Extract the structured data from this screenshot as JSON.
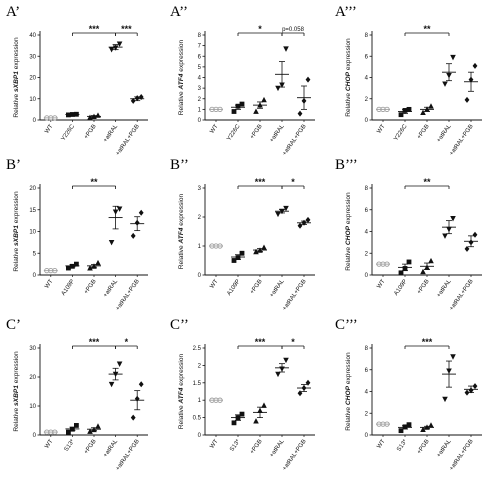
{
  "colors": {
    "wt": "#9e9e9e",
    "other": "#111111",
    "axis": "#111111"
  },
  "chart_data": [
    {
      "id": "A1",
      "panel_label": "A’",
      "type": "scatter",
      "gene": "sXBP1",
      "ylabel_pre": "Relative ",
      "ylabel_post": " expression",
      "ylim": [
        0,
        40
      ],
      "yticks": [
        0,
        10,
        20,
        30,
        40
      ],
      "categories": [
        "WT",
        "Y226C",
        "+PGB",
        "+atRAL",
        "+atRAL+PGB"
      ],
      "markers": [
        "circle",
        "square",
        "triangle-up",
        "triangle-down",
        "diamond"
      ],
      "points": [
        [
          1,
          1,
          1
        ],
        [
          2.4,
          2.6,
          2.7
        ],
        [
          1.2,
          1.6,
          2.2
        ],
        [
          33.2,
          34,
          35.8
        ],
        [
          9,
          10.3,
          10.8
        ]
      ],
      "means": [
        1,
        2.6,
        1.7,
        34.3,
        10
      ],
      "errors": [
        0,
        0.15,
        0.4,
        1.2,
        0.9
      ],
      "sig": [
        {
          "from": 1,
          "to": 3,
          "label": "***"
        },
        {
          "from": 3,
          "to": 4,
          "label": "***"
        }
      ]
    },
    {
      "id": "A2",
      "panel_label": "A’’",
      "type": "scatter",
      "gene": "ATF4",
      "ylabel_pre": "Relative ",
      "ylabel_post": " expression",
      "ylim": [
        0,
        8
      ],
      "yticks": [
        0,
        1,
        2,
        3,
        4,
        5,
        6,
        7,
        8
      ],
      "categories": [
        "WT",
        "Y226C",
        "+PGB",
        "+atRAL",
        "+atRAL+PGB"
      ],
      "markers": [
        "circle",
        "square",
        "triangle-up",
        "triangle-down",
        "diamond"
      ],
      "points": [
        [
          1,
          1,
          1
        ],
        [
          0.8,
          1.3,
          1.5
        ],
        [
          0.8,
          1.4,
          1.9
        ],
        [
          3,
          3.3,
          6.7
        ],
        [
          0.6,
          1.8,
          3.8
        ]
      ],
      "means": [
        1,
        1.2,
        1.4,
        4.3,
        2.1
      ],
      "errors": [
        0,
        0.2,
        0.3,
        1.2,
        1.1
      ],
      "sig": [
        {
          "from": 1,
          "to": 3,
          "label": "*"
        },
        {
          "from": 3,
          "to": 4,
          "label": "p=0.058"
        }
      ]
    },
    {
      "id": "A3",
      "panel_label": "A’’’",
      "type": "scatter",
      "gene": "CHOP",
      "ylabel_pre": "Relative ",
      "ylabel_post": " expression",
      "ylim": [
        0,
        8
      ],
      "yticks": [
        0,
        2,
        4,
        6,
        8
      ],
      "categories": [
        "WT",
        "Y226C",
        "+PGB",
        "+atRAL",
        "+atRAL+PGB"
      ],
      "markers": [
        "circle",
        "square",
        "triangle-up",
        "triangle-down",
        "diamond"
      ],
      "points": [
        [
          1,
          1,
          1
        ],
        [
          0.5,
          0.9,
          1
        ],
        [
          0.7,
          1,
          1.3
        ],
        [
          3.4,
          4.2,
          5.9
        ],
        [
          1.9,
          3.8,
          5.1
        ]
      ],
      "means": [
        1,
        0.8,
        1,
        4.5,
        3.6
      ],
      "errors": [
        0,
        0.2,
        0.2,
        0.8,
        0.9
      ],
      "sig": [
        {
          "from": 1,
          "to": 3,
          "label": "**"
        }
      ]
    },
    {
      "id": "B1",
      "panel_label": "B’",
      "type": "scatter",
      "gene": "sXBP1",
      "ylabel_pre": "Relative ",
      "ylabel_post": " expression",
      "ylim": [
        0,
        20
      ],
      "yticks": [
        0,
        5,
        10,
        15,
        20
      ],
      "categories": [
        "WT",
        "A109P",
        "+PGB",
        "+atRAL",
        "+atRAL+PGB"
      ],
      "markers": [
        "circle",
        "square",
        "triangle-up",
        "triangle-down",
        "diamond"
      ],
      "points": [
        [
          1,
          1,
          1
        ],
        [
          1.6,
          2,
          2.5
        ],
        [
          1.6,
          2,
          2.8
        ],
        [
          7.5,
          14.5,
          15.2
        ],
        [
          9,
          12,
          14.3
        ]
      ],
      "means": [
        1,
        2.1,
        2.1,
        13.2,
        11.8
      ],
      "errors": [
        0,
        0.25,
        0.3,
        2.6,
        1.6
      ],
      "sig": [
        {
          "from": 1,
          "to": 3,
          "label": "**"
        }
      ]
    },
    {
      "id": "B2",
      "panel_label": "B’’",
      "type": "scatter",
      "gene": "ATF4",
      "ylabel_pre": "Relative ",
      "ylabel_post": " expression",
      "ylim": [
        0,
        3
      ],
      "yticks": [
        0,
        1,
        2,
        3
      ],
      "categories": [
        "WT",
        "A109P",
        "+PGB",
        "+atRAL",
        "+atRAL+PGB"
      ],
      "markers": [
        "circle",
        "square",
        "triangle-up",
        "triangle-down",
        "diamond"
      ],
      "points": [
        [
          1,
          1,
          1
        ],
        [
          0.5,
          0.6,
          0.75
        ],
        [
          0.8,
          0.85,
          0.95
        ],
        [
          2.1,
          2.2,
          2.3
        ],
        [
          1.7,
          1.8,
          1.9
        ]
      ],
      "means": [
        1,
        0.62,
        0.86,
        2.2,
        1.8
      ],
      "errors": [
        0,
        0.08,
        0.05,
        0.06,
        0.06
      ],
      "sig": [
        {
          "from": 1,
          "to": 3,
          "label": "***"
        },
        {
          "from": 3,
          "to": 4,
          "label": "*"
        }
      ]
    },
    {
      "id": "B3",
      "panel_label": "B’’’",
      "type": "scatter",
      "gene": "CHOP",
      "ylabel_pre": "Relative ",
      "ylabel_post": " expression",
      "ylim": [
        0,
        8
      ],
      "yticks": [
        0,
        2,
        4,
        6,
        8
      ],
      "categories": [
        "WT",
        "A109P",
        "+PGB",
        "+atRAL",
        "+atRAL+PGB"
      ],
      "markers": [
        "circle",
        "square",
        "triangle-up",
        "triangle-down",
        "diamond"
      ],
      "points": [
        [
          1,
          1,
          1
        ],
        [
          0.2,
          0.6,
          1.2
        ],
        [
          0.3,
          0.7,
          1.3
        ],
        [
          3.6,
          4.2,
          5.2
        ],
        [
          2.4,
          3,
          3.7
        ]
      ],
      "means": [
        1,
        0.7,
        0.8,
        4.4,
        3.1
      ],
      "errors": [
        0,
        0.3,
        0.3,
        0.6,
        0.5
      ],
      "sig": [
        {
          "from": 1,
          "to": 3,
          "label": "**"
        }
      ]
    },
    {
      "id": "C1",
      "panel_label": "C’",
      "type": "scatter",
      "gene": "sXBP1",
      "ylabel_pre": "Relative ",
      "ylabel_post": " expression",
      "ylim": [
        0,
        30
      ],
      "yticks": [
        0,
        10,
        20,
        30
      ],
      "categories": [
        "WT",
        "S13*",
        "+PGB",
        "+atRAL",
        "+atRAL+PGB"
      ],
      "markers": [
        "circle",
        "square",
        "triangle-up",
        "triangle-down",
        "diamond"
      ],
      "points": [
        [
          1,
          1,
          1
        ],
        [
          1,
          2,
          3.3
        ],
        [
          1.2,
          1.8,
          3
        ],
        [
          17.5,
          21,
          24.5
        ],
        [
          6,
          12.5,
          17.5
        ]
      ],
      "means": [
        1,
        2.1,
        2,
        21,
        12
      ],
      "errors": [
        0,
        0.6,
        0.5,
        2,
        3.3
      ],
      "sig": [
        {
          "from": 1,
          "to": 3,
          "label": "***"
        },
        {
          "from": 3,
          "to": 4,
          "label": "*"
        }
      ]
    },
    {
      "id": "C2",
      "panel_label": "C’’",
      "type": "scatter",
      "gene": "ATF4",
      "ylabel_pre": "Relative ",
      "ylabel_post": " expression",
      "ylim": [
        0,
        2.5
      ],
      "yticks": [
        0,
        0.5,
        1,
        1.5,
        2,
        2.5
      ],
      "categories": [
        "WT",
        "S13*",
        "+PGB",
        "+atRAL",
        "+atRAL+PGB"
      ],
      "markers": [
        "circle",
        "square",
        "triangle-up",
        "triangle-down",
        "diamond"
      ],
      "points": [
        [
          1,
          1,
          1
        ],
        [
          0.35,
          0.5,
          0.6
        ],
        [
          0.4,
          0.7,
          0.85
        ],
        [
          1.75,
          1.9,
          2.15
        ],
        [
          1.2,
          1.35,
          1.5
        ]
      ],
      "means": [
        1,
        0.5,
        0.65,
        1.93,
        1.35
      ],
      "errors": [
        0,
        0.08,
        0.15,
        0.12,
        0.1
      ],
      "sig": [
        {
          "from": 1,
          "to": 3,
          "label": "***"
        },
        {
          "from": 3,
          "to": 4,
          "label": "*"
        }
      ]
    },
    {
      "id": "C3",
      "panel_label": "C’’’",
      "type": "scatter",
      "gene": "CHOP",
      "ylabel_pre": "Relative ",
      "ylabel_post": " expression",
      "ylim": [
        0,
        8
      ],
      "yticks": [
        0,
        2,
        4,
        6,
        8
      ],
      "categories": [
        "WT",
        "S13*",
        "+PGB",
        "+atRAL",
        "+atRAL+PGB"
      ],
      "markers": [
        "circle",
        "square",
        "triangle-up",
        "triangle-down",
        "diamond"
      ],
      "points": [
        [
          1,
          1,
          1
        ],
        [
          0.4,
          0.75,
          0.95
        ],
        [
          0.5,
          0.7,
          0.9
        ],
        [
          3.3,
          5.9,
          7.2
        ],
        [
          3.9,
          4.1,
          4.5
        ]
      ],
      "means": [
        1,
        0.7,
        0.7,
        5.6,
        4.2
      ],
      "errors": [
        0,
        0.15,
        0.1,
        1.2,
        0.3
      ],
      "sig": [
        {
          "from": 1,
          "to": 3,
          "label": "***"
        }
      ]
    }
  ]
}
